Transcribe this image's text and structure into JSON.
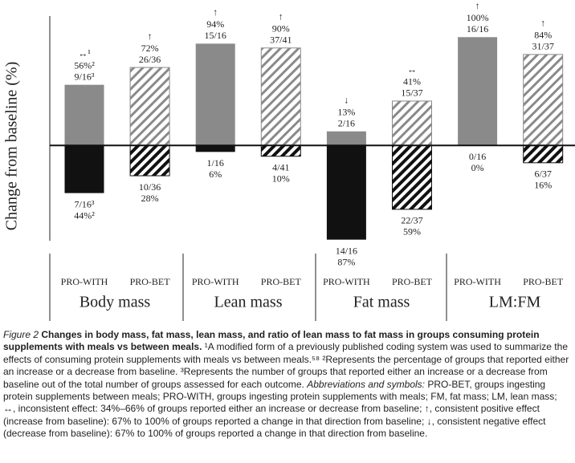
{
  "chart_data": {
    "type": "bar",
    "y_label": "Change from baseline (%)",
    "groups": [
      "Body mass",
      "Lean mass",
      "Fat mass",
      "LM:FM"
    ],
    "categories": [
      "PRO-WITH",
      "PRO-BET",
      "PRO-WITH",
      "PRO-BET",
      "PRO-WITH",
      "PRO-BET",
      "PRO-WITH",
      "PRO-BET"
    ],
    "ylim": [
      -88,
      118
    ],
    "series": [
      {
        "direction": "up",
        "color": "#8a8a8a",
        "values": [
          56,
          72,
          94,
          90,
          13,
          41,
          100,
          84
        ],
        "value_labels": [
          "56%²",
          "72%",
          "94%",
          "90%",
          "13%",
          "41%",
          "100%",
          "84%"
        ],
        "counts": [
          "9/16³",
          "26/36",
          "15/16",
          "37/41",
          "2/16",
          "15/37",
          "16/16",
          "31/37"
        ],
        "symbols": [
          "↔¹",
          "↑",
          "↑",
          "↑",
          "↓",
          "↔",
          "↑",
          "↑"
        ]
      },
      {
        "direction": "down",
        "color": "#111111",
        "values": [
          44,
          28,
          6,
          10,
          87,
          59,
          0,
          16
        ],
        "value_labels": [
          "44%²",
          "28%",
          "6%",
          "10%",
          "87%",
          "59%",
          "0%",
          "16%"
        ],
        "counts": [
          "7/16³",
          "10/36",
          "1/16",
          "4/41",
          "14/16",
          "22/37",
          "0/16",
          "6/37"
        ]
      }
    ]
  },
  "caption": {
    "figure_label": "Figure 2",
    "heading": "Changes in body mass, fat mass, lean mass, and ratio of lean mass to fat mass in groups consuming protein supplements with meals vs between meals.",
    "text1": "¹A modified form of a previously published coding system was used to summarize the effects of consuming protein supplements with meals vs between meals.⁵⁸ ²Represents the percentage of groups that reported either an increase or a decrease from baseline. ³Represents the number of groups that reported either an increase or a decrease from baseline out of the total number of groups assessed for each outcome.",
    "abbrev_label": "Abbreviations and symbols:",
    "text2": "PRO-BET, groups ingesting protein supplements between meals; PRO-WITH, groups ingesting protein supplements with meals; FM, fat mass; LM, lean mass; ↔, inconsistent effect: 34%–66% of groups reported either an increase or decrease from baseline; ↑, consistent positive effect (increase from baseline): 67% to 100% of groups reported a change in that direction from baseline; ↓, consistent negative effect (decrease from baseline): 67% to 100% of groups reported a change in that direction from baseline."
  }
}
